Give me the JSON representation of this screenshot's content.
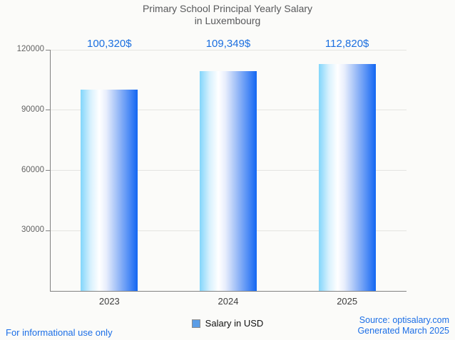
{
  "chart": {
    "title_line1": "Primary School Principal Yearly Salary",
    "title_line2": "in Luxembourg"
  },
  "chart_data": {
    "type": "bar",
    "title": "Primary School Principal Yearly Salary in Luxembourg",
    "categories": [
      "2023",
      "2024",
      "2025"
    ],
    "values": [
      100320,
      109349,
      112820
    ],
    "value_labels": [
      "100,320$",
      "109,349$",
      "112,820$"
    ],
    "series": [
      {
        "name": "Salary in USD",
        "values": [
          100320,
          109349,
          112820
        ]
      }
    ],
    "xlabel": "",
    "ylabel": "",
    "ylim": [
      0,
      120000
    ],
    "yticks": [
      30000,
      60000,
      90000,
      120000
    ],
    "ytick_labels": [
      "30000",
      "60000",
      "90000",
      "120000"
    ],
    "grid": true,
    "legend_position": "bottom",
    "bar_gradient": [
      "#82d6fb",
      "#ffffff",
      "#1266f2"
    ]
  },
  "legend": {
    "label": "Salary in USD",
    "swatch_color": "#5b9de6"
  },
  "footer": {
    "disclaimer": "For informational use only",
    "source": "Source: optisalary.com",
    "generated": "Generated March 2025"
  },
  "colors": {
    "accent_blue": "#1b6ee6",
    "value_label_blue": "#1b6fe0",
    "title_gray": "#58595b",
    "axis_gray": "#818181",
    "grid_gray": "#e4e4e1",
    "background": "#fbfbf9"
  }
}
